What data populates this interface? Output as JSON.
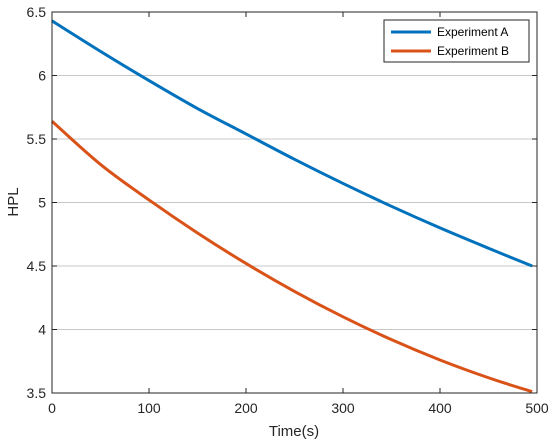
{
  "chart_data": {
    "type": "line",
    "xlabel": "Time(s)",
    "ylabel": "HPL",
    "xlim": [
      0,
      500
    ],
    "ylim": [
      3.5,
      6.5
    ],
    "xticks": [
      0,
      100,
      200,
      300,
      400,
      500
    ],
    "yticks": [
      3.5,
      4,
      4.5,
      5,
      5.5,
      6,
      6.5
    ],
    "xtick_labels": [
      "0",
      "100",
      "200",
      "300",
      "400",
      "500"
    ],
    "ytick_labels": [
      "3.5",
      "4",
      "4.5",
      "5",
      "5.5",
      "6",
      "6.5"
    ],
    "grid": "horizontal",
    "legend_position": "top-right",
    "series": [
      {
        "name": "Experiment A",
        "color": "#0072BD",
        "x": [
          0,
          50,
          100,
          150,
          200,
          250,
          300,
          350,
          400,
          450,
          495
        ],
        "y": [
          6.43,
          6.19,
          5.96,
          5.74,
          5.54,
          5.34,
          5.15,
          4.97,
          4.8,
          4.64,
          4.5
        ]
      },
      {
        "name": "Experiment B",
        "color": "#D95319",
        "x": [
          0,
          50,
          100,
          150,
          200,
          250,
          300,
          350,
          400,
          450,
          495
        ],
        "y": [
          5.64,
          5.3,
          5.02,
          4.76,
          4.52,
          4.3,
          4.1,
          3.92,
          3.76,
          3.62,
          3.51
        ]
      }
    ]
  }
}
